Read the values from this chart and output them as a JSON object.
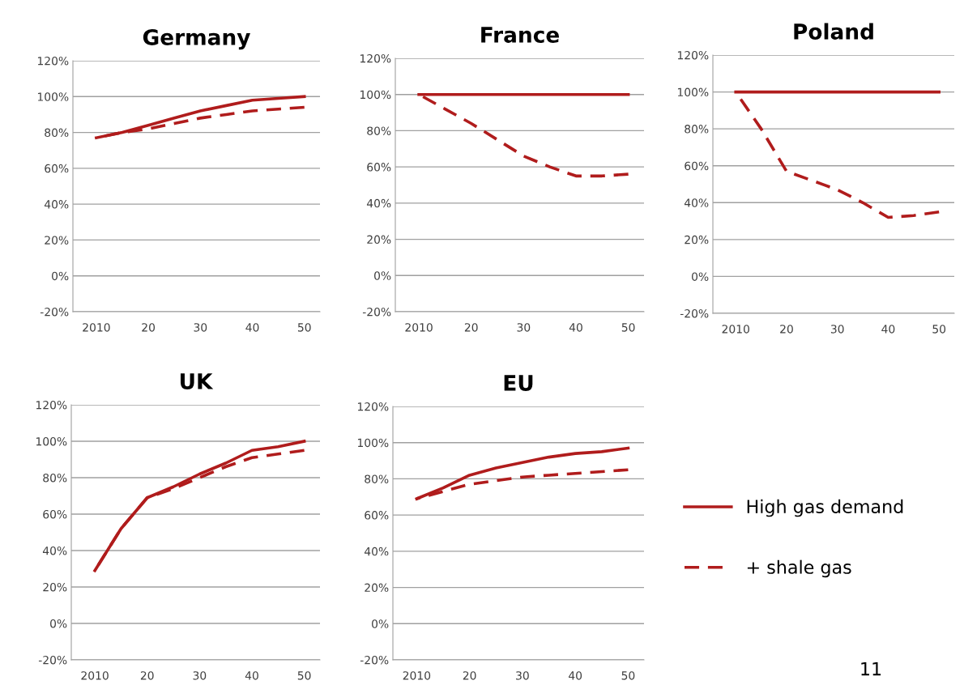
{
  "chart_data": [
    {
      "type": "line",
      "title": "Germany",
      "categories": [
        "2010",
        null,
        "20",
        null,
        "30",
        null,
        "40",
        null,
        "50"
      ],
      "ylim": [
        -20,
        120
      ],
      "yticks": [
        {
          "value": -20,
          "label": "-20%"
        },
        {
          "value": 0,
          "label": "0%"
        },
        {
          "value": 20,
          "label": "20%"
        },
        {
          "value": 40,
          "label": "40%"
        },
        {
          "value": 60,
          "label": "60%"
        },
        {
          "value": 80,
          "label": "80%"
        },
        {
          "value": 100,
          "label": "100%"
        },
        {
          "value": 120,
          "label": "120%"
        }
      ],
      "grid": "y",
      "series": [
        {
          "color": "#b01c1c",
          "line_style": "solid",
          "values": [
            77,
            80,
            84,
            88,
            92,
            95,
            98,
            99,
            100
          ]
        },
        {
          "color": "#b01c1c",
          "line_style": "dashed",
          "values": [
            77,
            80,
            82,
            85,
            88,
            90,
            92,
            93,
            94
          ]
        }
      ]
    },
    {
      "type": "line",
      "title": "France",
      "categories": [
        "2010",
        null,
        "20",
        null,
        "30",
        null,
        "40",
        null,
        "50"
      ],
      "ylim": [
        -20,
        120
      ],
      "yticks": [
        {
          "value": -20,
          "label": "-20%"
        },
        {
          "value": 0,
          "label": "0%"
        },
        {
          "value": 20,
          "label": "20%"
        },
        {
          "value": 40,
          "label": "40%"
        },
        {
          "value": 60,
          "label": "60%"
        },
        {
          "value": 80,
          "label": "80%"
        },
        {
          "value": 100,
          "label": "100%"
        },
        {
          "value": 120,
          "label": "120%"
        }
      ],
      "grid": "y",
      "series": [
        {
          "color": "#b01c1c",
          "line_style": "solid",
          "values": [
            100,
            100,
            100,
            100,
            100,
            100,
            100,
            100,
            100
          ]
        },
        {
          "color": "#b01c1c",
          "line_style": "dashed",
          "values": [
            100,
            92,
            84,
            75,
            66,
            60,
            55,
            55,
            56
          ]
        }
      ]
    },
    {
      "type": "line",
      "title": "Poland",
      "categories": [
        "2010",
        null,
        "20",
        null,
        "30",
        null,
        "40",
        null,
        "50"
      ],
      "ylim": [
        -20,
        120
      ],
      "yticks": [
        {
          "value": -20,
          "label": "-20%"
        },
        {
          "value": 0,
          "label": "0%"
        },
        {
          "value": 20,
          "label": "20%"
        },
        {
          "value": 40,
          "label": "40%"
        },
        {
          "value": 60,
          "label": "60%"
        },
        {
          "value": 80,
          "label": "80%"
        },
        {
          "value": 100,
          "label": "100%"
        },
        {
          "value": 120,
          "label": "120%"
        }
      ],
      "grid": "y",
      "series": [
        {
          "color": "#b01c1c",
          "line_style": "solid",
          "values": [
            100,
            100,
            100,
            100,
            100,
            100,
            100,
            100,
            100
          ]
        },
        {
          "color": "#b01c1c",
          "line_style": "dashed",
          "values": [
            100,
            80,
            57,
            52,
            47,
            40,
            32,
            33,
            35
          ]
        }
      ]
    },
    {
      "type": "line",
      "title": "UK",
      "categories": [
        "2010",
        null,
        "20",
        null,
        "30",
        null,
        "40",
        null,
        "50"
      ],
      "ylim": [
        -20,
        120
      ],
      "yticks": [
        {
          "value": -20,
          "label": "-20%"
        },
        {
          "value": 0,
          "label": "0%"
        },
        {
          "value": 20,
          "label": "20%"
        },
        {
          "value": 40,
          "label": "40%"
        },
        {
          "value": 60,
          "label": "60%"
        },
        {
          "value": 80,
          "label": "80%"
        },
        {
          "value": 100,
          "label": "100%"
        },
        {
          "value": 120,
          "label": "120%"
        }
      ],
      "grid": "y",
      "series": [
        {
          "color": "#b01c1c",
          "line_style": "solid",
          "values": [
            29,
            52,
            69,
            75,
            82,
            88,
            95,
            97,
            100
          ]
        },
        {
          "color": "#b01c1c",
          "line_style": "dashed",
          "values": [
            29,
            52,
            69,
            74,
            80,
            86,
            91,
            93,
            95
          ]
        }
      ]
    },
    {
      "type": "line",
      "title": "EU",
      "categories": [
        "2010",
        null,
        "20",
        null,
        "30",
        null,
        "40",
        null,
        "50"
      ],
      "ylim": [
        -20,
        120
      ],
      "yticks": [
        {
          "value": -20,
          "label": "-20%"
        },
        {
          "value": 0,
          "label": "0%"
        },
        {
          "value": 20,
          "label": "20%"
        },
        {
          "value": 40,
          "label": "40%"
        },
        {
          "value": 60,
          "label": "60%"
        },
        {
          "value": 80,
          "label": "80%"
        },
        {
          "value": 100,
          "label": "100%"
        },
        {
          "value": 120,
          "label": "120%"
        }
      ],
      "grid": "y",
      "legend": "right",
      "annotations": [
        "11"
      ],
      "series": [
        {
          "name": "High gas demand",
          "color": "#b01c1c",
          "line_style": "solid",
          "values": [
            69,
            75,
            82,
            86,
            89,
            92,
            94,
            95,
            97
          ]
        },
        {
          "name": "+ shale gas",
          "color": "#b01c1c",
          "line_style": "dashed",
          "values": [
            69,
            73,
            77,
            79,
            81,
            82,
            83,
            84,
            85
          ]
        }
      ]
    }
  ]
}
